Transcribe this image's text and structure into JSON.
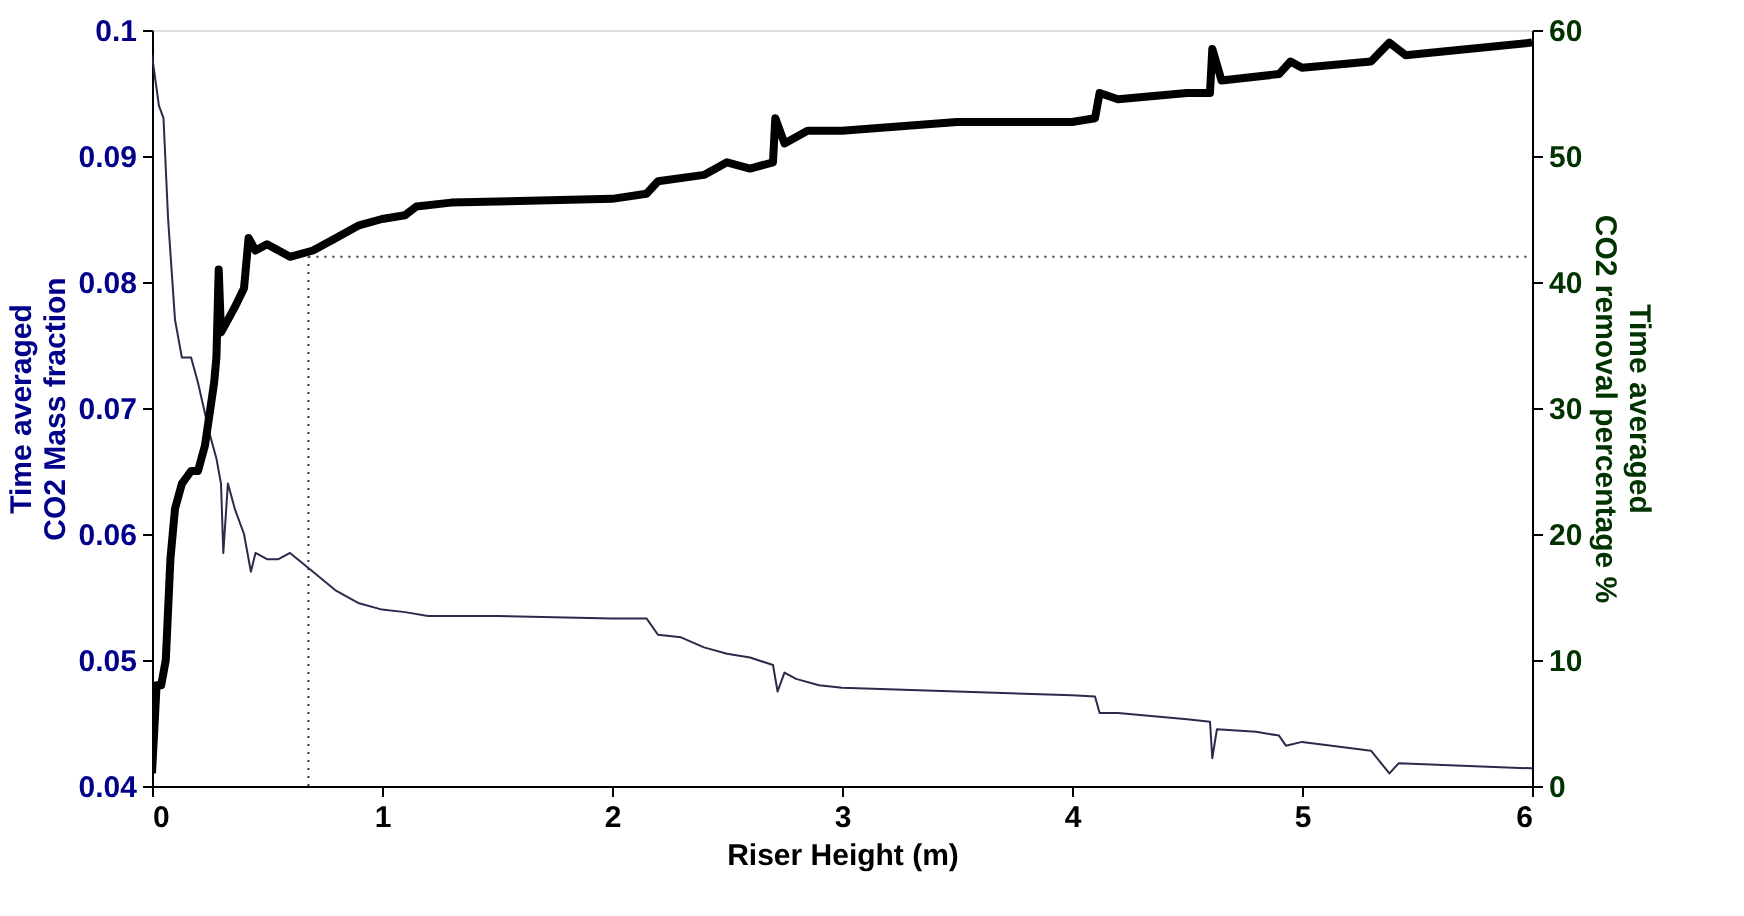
{
  "chart_data": {
    "type": "line",
    "xlabel": "Riser Height (m)",
    "ylabel": "Time averaged\nCO2 Mass fraction",
    "y2label": "Time averaged\nCO2 removal percentage %",
    "xlim": [
      0,
      6
    ],
    "xticks": [
      0,
      1,
      2,
      3,
      4,
      5,
      6
    ],
    "ylim": [
      0.04,
      0.1
    ],
    "yticks": [
      0.04,
      0.05,
      0.06,
      0.07,
      0.08,
      0.09,
      0.1
    ],
    "y2lim": [
      0,
      60
    ],
    "y2ticks": [
      0,
      10,
      20,
      30,
      40,
      50,
      60
    ],
    "grid": false,
    "marker": "none",
    "line_style": "solid",
    "series": [
      {
        "color": "#2a2a4a",
        "x": [
          0,
          0.03,
          0.05,
          0.07,
          0.1,
          0.13,
          0.17,
          0.2,
          0.25,
          0.28,
          0.3,
          0.31,
          0.33,
          0.36,
          0.4,
          0.43,
          0.45,
          0.5,
          0.55,
          0.6,
          0.7,
          0.8,
          0.9,
          1.0,
          1.1,
          1.2,
          1.5,
          2.0,
          2.15,
          2.2,
          2.3,
          2.4,
          2.5,
          2.6,
          2.7,
          2.72,
          2.75,
          2.8,
          2.9,
          3.0,
          3.5,
          4.0,
          4.1,
          4.12,
          4.2,
          4.5,
          4.6,
          4.61,
          4.63,
          4.8,
          4.9,
          4.93,
          5.0,
          5.3,
          5.38,
          5.42,
          6
        ],
        "values": [
          0.098,
          0.094,
          0.093,
          0.085,
          0.077,
          0.074,
          0.074,
          0.072,
          0.068,
          0.066,
          0.064,
          0.0585,
          0.064,
          0.062,
          0.06,
          0.057,
          0.0585,
          0.058,
          0.058,
          0.0585,
          0.057,
          0.0555,
          0.0545,
          0.054,
          0.0538,
          0.0535,
          0.0535,
          0.0533,
          0.0533,
          0.052,
          0.0518,
          0.051,
          0.0505,
          0.0502,
          0.0496,
          0.0475,
          0.049,
          0.0485,
          0.048,
          0.0478,
          0.0475,
          0.0472,
          0.0471,
          0.0458,
          0.0458,
          0.0453,
          0.0451,
          0.0422,
          0.0445,
          0.0443,
          0.044,
          0.0432,
          0.0435,
          0.0428,
          0.041,
          0.0418,
          0.0414
        ]
      },
      {
        "color": "#000000",
        "axis": "y2",
        "x": [
          0,
          0.02,
          0.04,
          0.06,
          0.08,
          0.1,
          0.13,
          0.17,
          0.2,
          0.23,
          0.27,
          0.28,
          0.29,
          0.3,
          0.33,
          0.36,
          0.4,
          0.42,
          0.45,
          0.5,
          0.55,
          0.6,
          0.7,
          0.8,
          0.9,
          1.0,
          1.1,
          1.15,
          1.3,
          2.0,
          2.15,
          2.2,
          2.4,
          2.5,
          2.6,
          2.7,
          2.71,
          2.75,
          2.85,
          3.0,
          3.5,
          4.0,
          4.1,
          4.12,
          4.2,
          4.5,
          4.6,
          4.61,
          4.65,
          4.9,
          4.95,
          5.0,
          5.3,
          5.38,
          5.45,
          6
        ],
        "values": [
          1,
          8,
          8,
          10,
          18,
          22,
          24,
          25,
          25,
          27,
          32,
          34,
          41,
          36,
          37,
          38,
          39.5,
          43.5,
          42.5,
          43,
          42.5,
          42,
          42.5,
          43.5,
          44.5,
          45,
          45.3,
          46,
          46.3,
          46.6,
          47,
          48,
          48.5,
          49.5,
          49,
          49.5,
          53,
          51,
          52,
          52,
          52.7,
          52.7,
          53,
          55,
          54.5,
          55,
          55,
          58.5,
          56,
          56.5,
          57.5,
          57,
          57.5,
          59,
          58,
          59
        ]
      }
    ],
    "ref_lines": [
      {
        "axis": "x",
        "value": 0.68,
        "line_style": "dotted",
        "color": "#333333"
      },
      {
        "axis": "y2",
        "value": 42,
        "line_style": "dotted",
        "color": "#333333"
      }
    ]
  }
}
